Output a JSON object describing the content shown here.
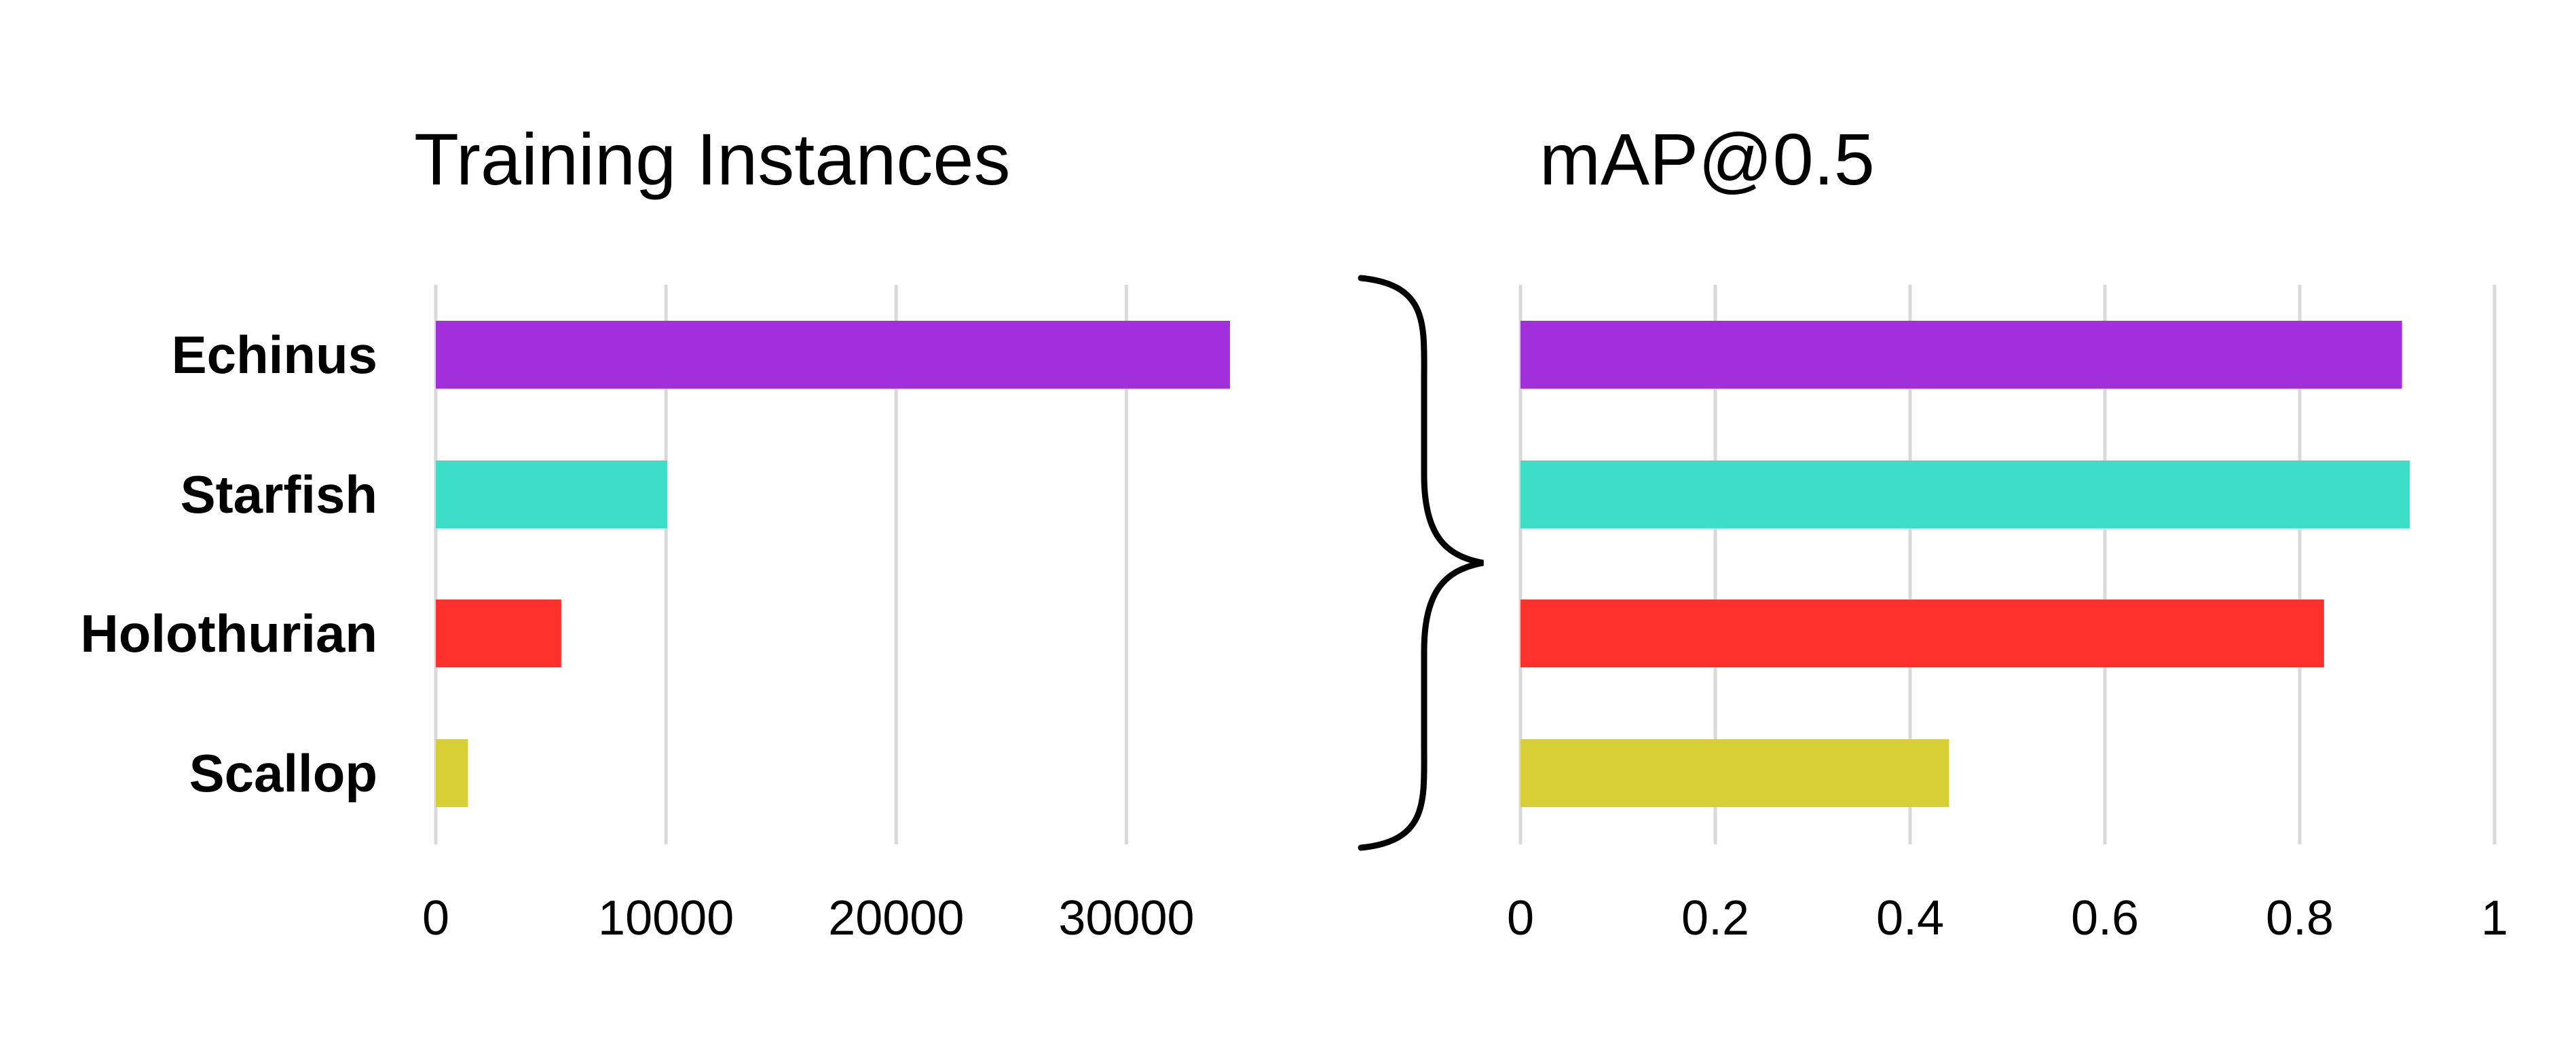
{
  "chart_data": [
    {
      "type": "bar",
      "orientation": "horizontal",
      "title": "Training Instances",
      "categories": [
        "Echinus",
        "Starfish",
        "Holothurian",
        "Scallop"
      ],
      "values": [
        34500,
        10050,
        5450,
        1400
      ],
      "xlim": [
        0,
        35000
      ],
      "xticks": [
        0,
        10000,
        20000,
        30000
      ],
      "xtick_labels": [
        "0",
        "10000",
        "20000",
        "30000"
      ],
      "grid": true,
      "colors": [
        "#a12fdc",
        "#3ddec8",
        "#ff312c",
        "#d8cf37"
      ]
    },
    {
      "type": "bar",
      "orientation": "horizontal",
      "title": "mAP@0.5",
      "categories": [
        "Echinus",
        "Starfish",
        "Holothurian",
        "Scallop"
      ],
      "values": [
        0.905,
        0.913,
        0.825,
        0.44
      ],
      "xlim": [
        0,
        1
      ],
      "xticks": [
        0,
        0.2,
        0.4,
        0.6,
        0.8,
        1
      ],
      "xtick_labels": [
        "0",
        "0.2",
        "0.4",
        "0.6",
        "0.8",
        "1"
      ],
      "grid": true,
      "colors": [
        "#a12fdc",
        "#3ddec8",
        "#ff312c",
        "#d8cf37"
      ]
    }
  ]
}
